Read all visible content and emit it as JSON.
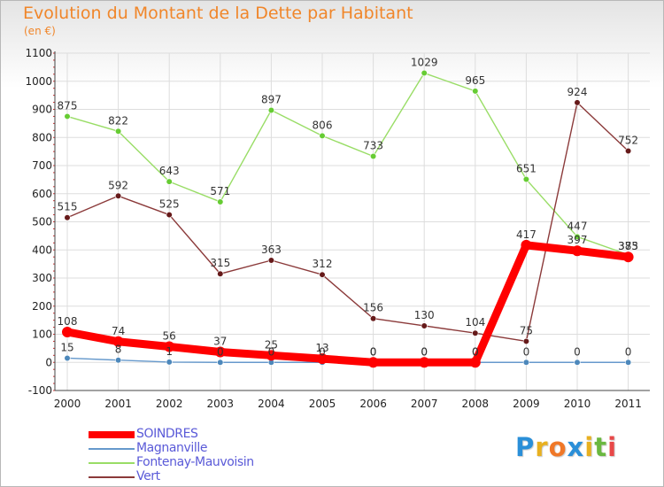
{
  "title": "Evolution du Montant de la Dette par Habitant",
  "unit_label": "(en €)",
  "chart_data": {
    "type": "line",
    "title": "Evolution du Montant de la Dette par Habitant",
    "ylabel": "(en €)",
    "x": [
      "2000",
      "2001",
      "2002",
      "2003",
      "2004",
      "2005",
      "2006",
      "2007",
      "2008",
      "2009",
      "2010",
      "2011"
    ],
    "ylim": [
      -100,
      1100
    ],
    "yticks": [
      "-100",
      "0",
      "100",
      "200",
      "300",
      "400",
      "500",
      "600",
      "700",
      "800",
      "900",
      "1000",
      "1100"
    ],
    "grid": true,
    "legend": "bottom-left",
    "series": [
      {
        "name": "Fontenay-Mauvoisin",
        "color": "#99dd66",
        "marker": "#66cc33",
        "values": [
          875,
          822,
          643,
          571,
          897,
          806,
          733,
          1029,
          965,
          651,
          447,
          383
        ],
        "labels": [
          "875",
          "822",
          "643",
          "571",
          "897",
          "806",
          "733",
          "1029",
          "965",
          "651",
          "447",
          ""
        ]
      },
      {
        "name": "Vert",
        "color": "#8b3a3a",
        "marker": "#661a1a",
        "values": [
          515,
          592,
          525,
          315,
          363,
          312,
          156,
          130,
          104,
          75,
          924,
          752
        ],
        "labels": [
          "515",
          "592",
          "525",
          "315",
          "363",
          "312",
          "156",
          "130",
          "104",
          "75",
          "924",
          "752"
        ]
      },
      {
        "name": "Magnanville",
        "color": "#6699cc",
        "marker": "#4d88bb",
        "values": [
          15,
          8,
          1,
          0,
          0,
          0,
          0,
          0,
          0,
          0,
          0,
          0
        ],
        "labels": [
          "15",
          "8",
          "1",
          "0",
          "0",
          "0",
          "0",
          "0",
          "0",
          "0",
          "0",
          "0"
        ]
      },
      {
        "name": "SOINDRES",
        "color": "#ff0000",
        "marker": "#ff0000",
        "values": [
          108,
          74,
          56,
          37,
          25,
          13,
          0,
          0,
          0,
          417,
          397,
          375
        ],
        "labels": [
          "108",
          "74",
          "56",
          "37",
          "25",
          "13",
          "0",
          "0",
          "0",
          "417",
          "397",
          "375"
        ]
      }
    ],
    "overlap_label_2011": "383"
  },
  "legend": [
    {
      "name": "SOINDRES",
      "color": "#ff0000"
    },
    {
      "name": "Magnanville",
      "color": "#6699cc"
    },
    {
      "name": "Fontenay-Mauvoisin",
      "color": "#99dd66"
    },
    {
      "name": "Vert",
      "color": "#8b3a3a"
    }
  ],
  "logo": {
    "letters": [
      "P",
      "r",
      "o",
      "x",
      "i",
      "t",
      "i"
    ],
    "colors": [
      "#2a8fd8",
      "#e8b020",
      "#f07828",
      "#2a8fd8",
      "#e8b020",
      "#6ab840",
      "#e84848"
    ]
  }
}
